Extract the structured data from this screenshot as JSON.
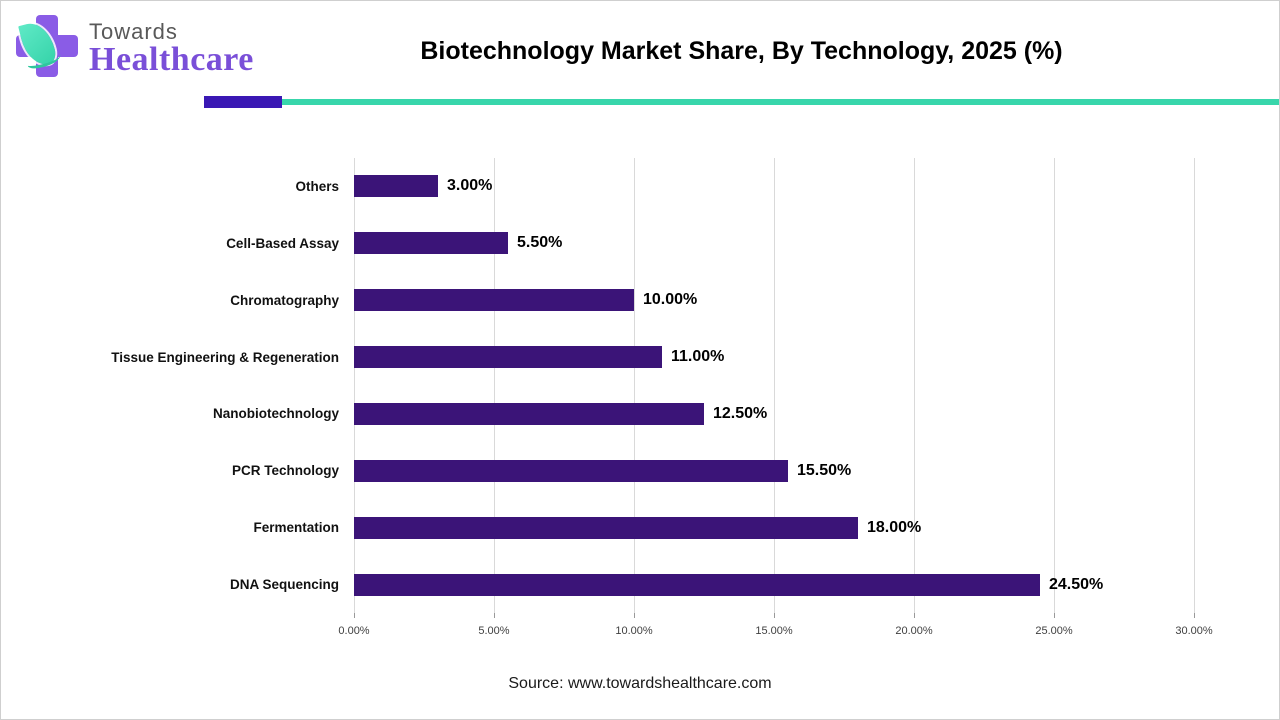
{
  "logo": {
    "line1": "Towards",
    "line2": "Healthcare"
  },
  "chart_data": {
    "type": "bar",
    "orientation": "horizontal",
    "title": "Biotechnology Market Share, By Technology, 2025 (%)",
    "categories": [
      "Others",
      "Cell-Based Assay",
      "Chromatography",
      "Tissue Engineering & Regeneration",
      "Nanobiotechnology",
      "PCR Technology",
      "Fermentation",
      "DNA Sequencing"
    ],
    "values": [
      3.0,
      5.5,
      10.0,
      11.0,
      12.5,
      15.5,
      18.0,
      24.5
    ],
    "value_labels": [
      "3.00%",
      "5.50%",
      "10.00%",
      "11.00%",
      "12.50%",
      "15.50%",
      "18.00%",
      "24.50%"
    ],
    "xlabel": "",
    "ylabel": "",
    "xlim": [
      0,
      30
    ],
    "xticks": [
      0,
      5,
      10,
      15,
      20,
      25,
      30
    ],
    "xtick_labels": [
      "0.00%",
      "5.00%",
      "10.00%",
      "15.00%",
      "20.00%",
      "25.00%",
      "30.00%"
    ],
    "grid": "vertical-gridlines",
    "legend": "none"
  },
  "source": "Source: www.towardshealthcare.com",
  "colors": {
    "bar": "#3b1478",
    "accent_purple": "#3a18b4",
    "accent_teal": "#38d6ab",
    "grid": "#d9d9d9",
    "logo_purple": "#8a5ce6",
    "logo_text_purple": "#7a4fd8",
    "logo_text_gray": "#595959"
  }
}
